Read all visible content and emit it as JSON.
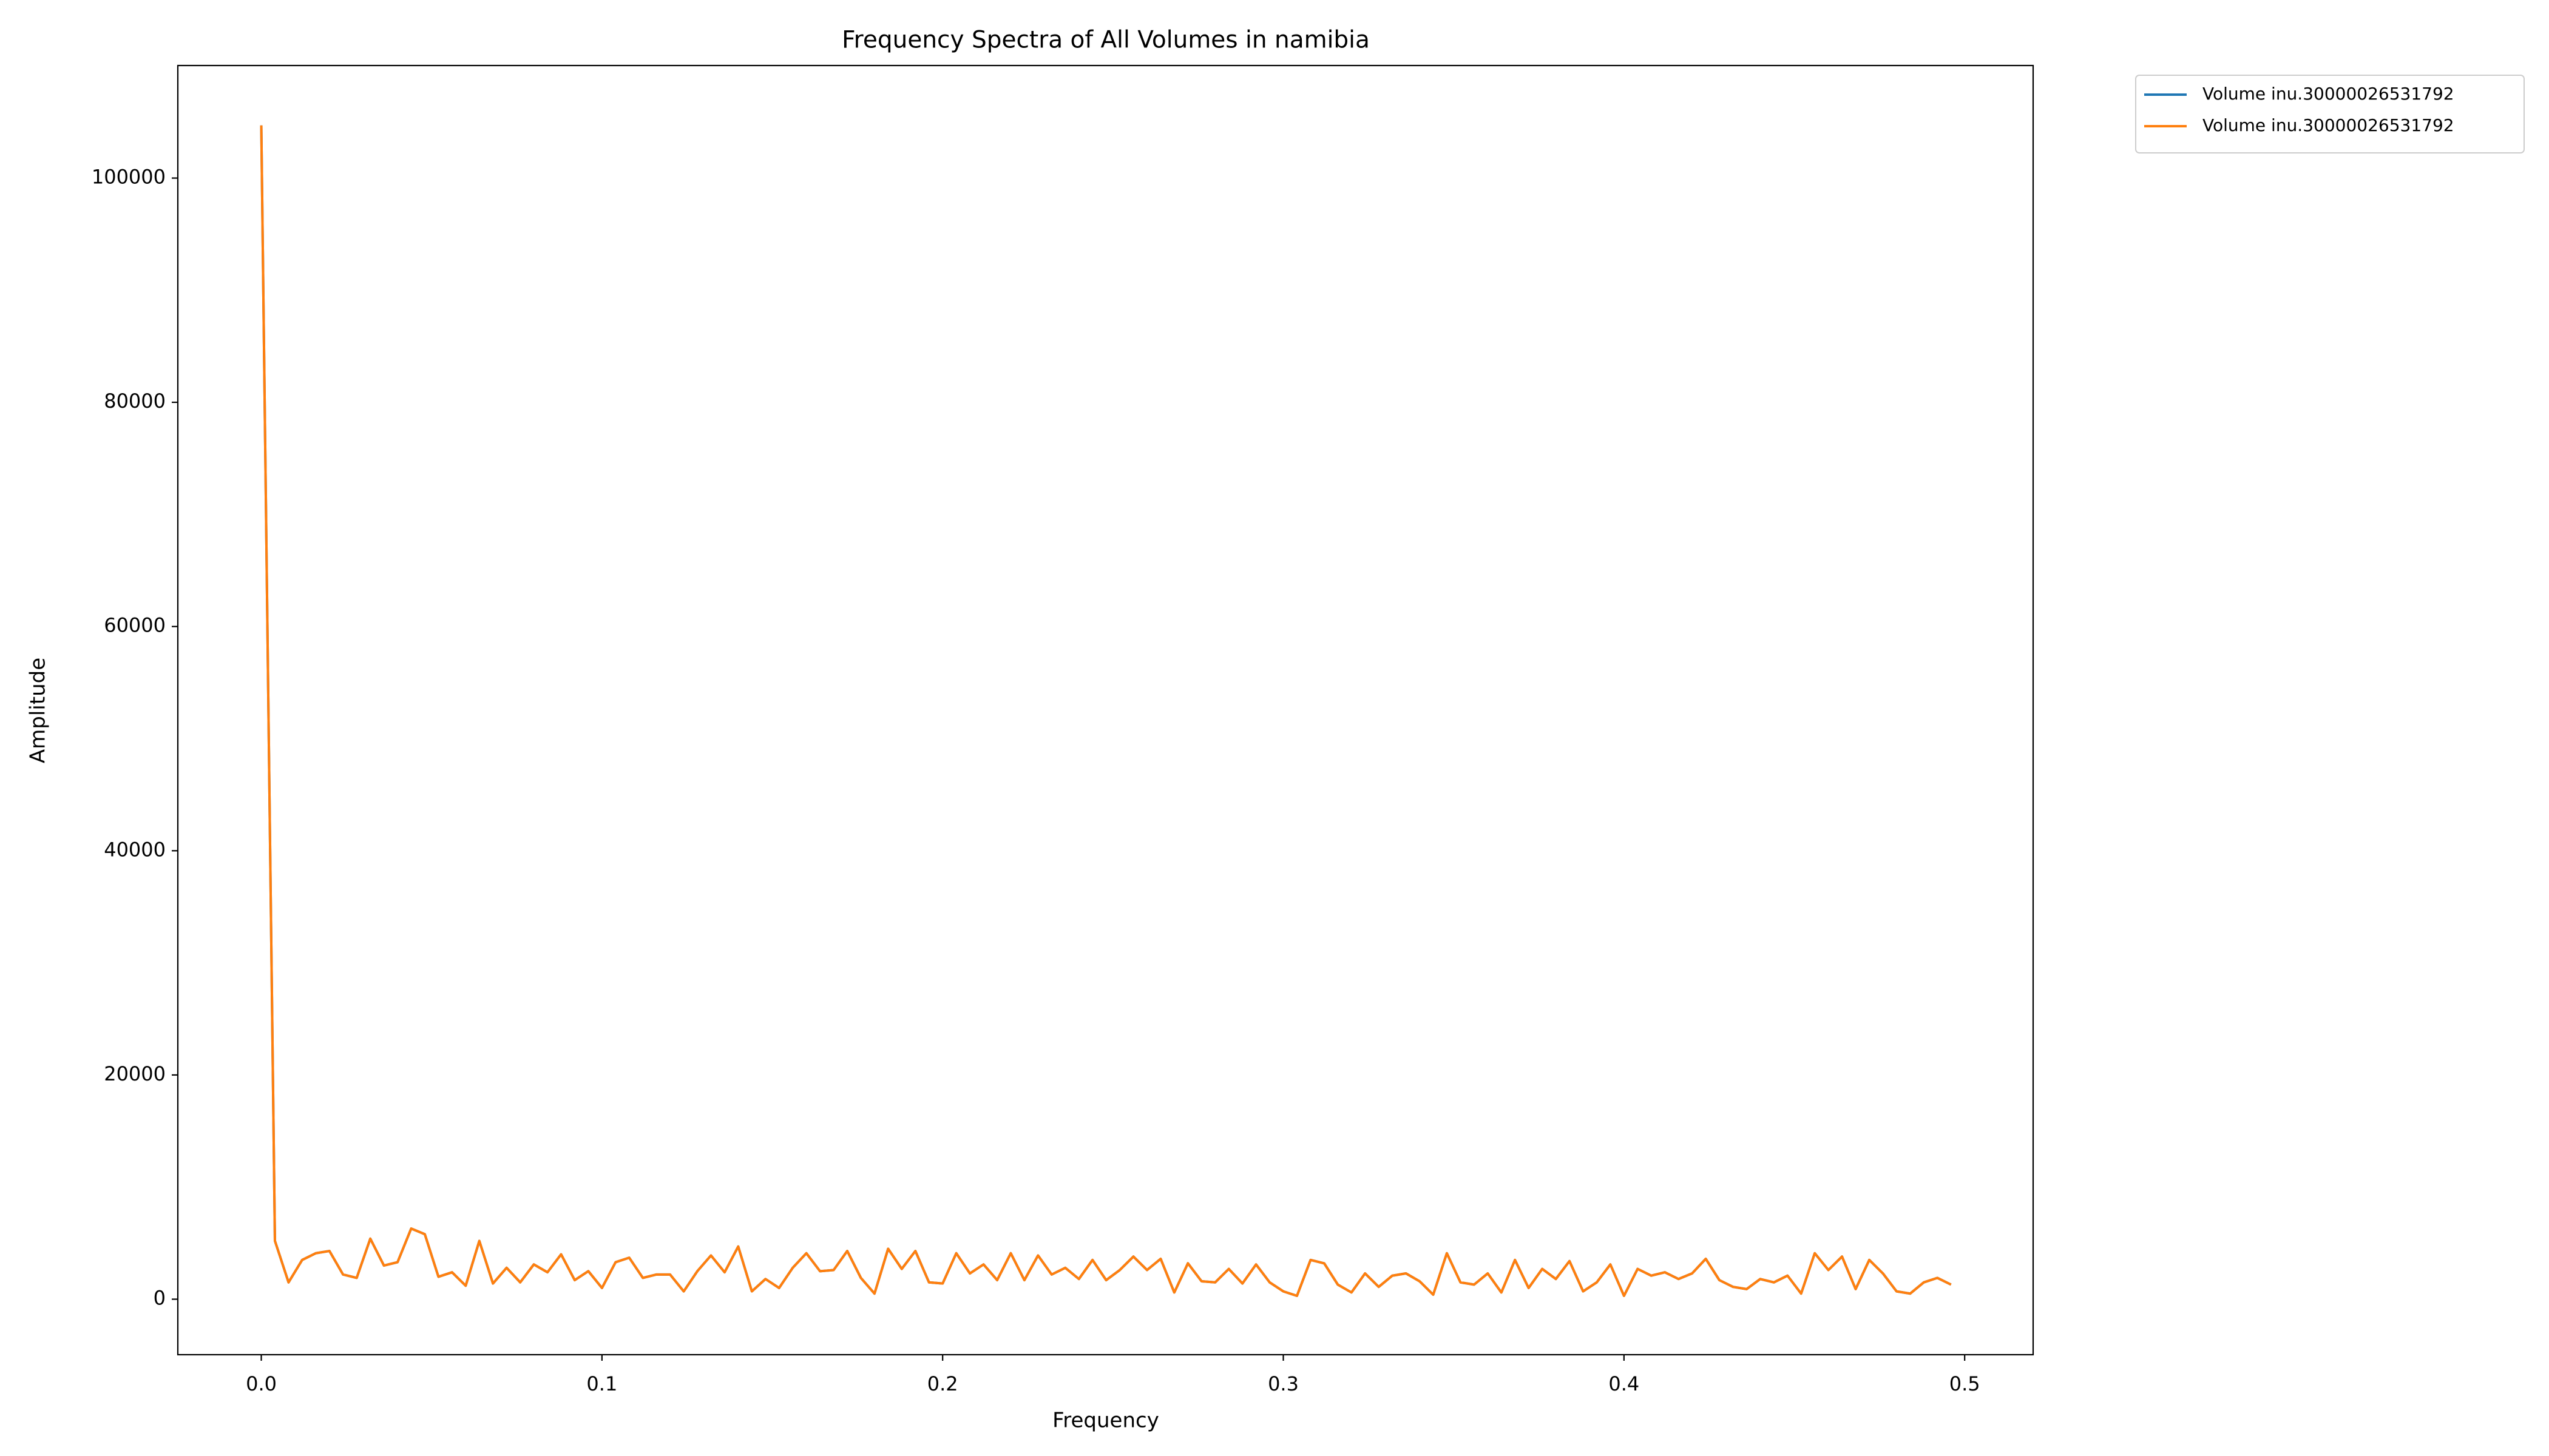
{
  "chart_data": {
    "type": "line",
    "title": "Frequency Spectra of All Volumes in namibia",
    "x_label": "Frequency",
    "y_label": "Amplitude",
    "xlim": [
      -0.0245,
      0.5201
    ],
    "ylim": [
      -4950,
      110040
    ],
    "xticks": [
      {
        "value": 0,
        "label": "0.0"
      },
      0.1,
      0.2,
      0.3,
      0.4,
      0.5
    ],
    "yticks": [
      0,
      20000,
      40000,
      60000,
      80000,
      100000
    ],
    "grid": false,
    "legend": "outside upper right",
    "x": [
      0,
      0.004,
      0.008,
      0.012,
      0.016,
      0.02,
      0.024,
      0.028,
      0.032,
      0.036,
      0.04,
      0.044,
      0.048,
      0.052,
      0.056,
      0.06,
      0.064,
      0.068,
      0.072,
      0.076,
      0.08,
      0.084,
      0.088,
      0.092,
      0.096,
      0.1,
      0.104,
      0.108,
      0.112,
      0.116,
      0.12,
      0.124,
      0.128,
      0.132,
      0.136,
      0.14,
      0.144,
      0.148,
      0.152,
      0.156,
      0.16,
      0.164,
      0.168,
      0.172,
      0.176,
      0.18,
      0.184,
      0.188,
      0.192,
      0.196,
      0.2,
      0.204,
      0.208,
      0.212,
      0.216,
      0.22,
      0.224,
      0.228,
      0.232,
      0.236,
      0.24,
      0.244,
      0.248,
      0.252,
      0.256,
      0.26,
      0.264,
      0.268,
      0.272,
      0.276,
      0.28,
      0.284,
      0.288,
      0.292,
      0.296,
      0.3,
      0.304,
      0.308,
      0.312,
      0.316,
      0.32,
      0.324,
      0.328,
      0.332,
      0.336,
      0.34,
      0.344,
      0.348,
      0.352,
      0.356,
      0.36,
      0.364,
      0.368,
      0.372,
      0.376,
      0.38,
      0.384,
      0.388,
      0.392,
      0.396,
      0.4,
      0.404,
      0.408,
      0.412,
      0.416,
      0.42,
      0.424,
      0.428,
      0.432,
      0.436,
      0.44,
      0.444,
      0.448,
      0.452,
      0.456,
      0.46,
      0.464,
      0.468,
      0.472,
      0.476,
      0.48,
      0.484,
      0.488,
      0.492,
      0.496
    ],
    "series": [
      {
        "name": "Volume inu.30000026531792",
        "color": "#1f77b4",
        "values": [
          104700,
          5200,
          1500,
          3500,
          4100,
          4300,
          2200,
          1900,
          5400,
          3000,
          3300,
          6300,
          5800,
          2000,
          2400,
          1200,
          5200,
          1400,
          2800,
          1500,
          3100,
          2400,
          4000,
          1700,
          2500,
          1000,
          3300,
          3700,
          1900,
          2200,
          2200,
          700,
          2500,
          3900,
          2400,
          4700,
          700,
          1800,
          1000,
          2800,
          4100,
          2500,
          2600,
          4300,
          1900,
          500,
          4500,
          2700,
          4300,
          1500,
          1400,
          4100,
          2300,
          3100,
          1700,
          4100,
          1700,
          3900,
          2200,
          2800,
          1800,
          3500,
          1700,
          2600,
          3800,
          2600,
          3600,
          600,
          3200,
          1600,
          1500,
          2700,
          1400,
          3100,
          1500,
          700,
          300,
          3500,
          3200,
          1300,
          600,
          2300,
          1100,
          2100,
          2300,
          1600,
          400,
          4100,
          1500,
          1300,
          2300,
          600,
          3500,
          1000,
          2700,
          1800,
          3400,
          700,
          1500,
          3100,
          300,
          2700,
          2100,
          2400,
          1800,
          2300,
          3600,
          1700,
          1100,
          900,
          1800,
          1500,
          2100,
          500,
          4100,
          2600,
          3800,
          900,
          3500,
          2300,
          700,
          500,
          1500,
          1900,
          1300
        ]
      },
      {
        "name": "Volume inu.30000026531792",
        "color": "#ff7f0e",
        "values": [
          104700,
          5200,
          1500,
          3500,
          4100,
          4300,
          2200,
          1900,
          5400,
          3000,
          3300,
          6300,
          5800,
          2000,
          2400,
          1200,
          5200,
          1400,
          2800,
          1500,
          3100,
          2400,
          4000,
          1700,
          2500,
          1000,
          3300,
          3700,
          1900,
          2200,
          2200,
          700,
          2500,
          3900,
          2400,
          4700,
          700,
          1800,
          1000,
          2800,
          4100,
          2500,
          2600,
          4300,
          1900,
          500,
          4500,
          2700,
          4300,
          1500,
          1400,
          4100,
          2300,
          3100,
          1700,
          4100,
          1700,
          3900,
          2200,
          2800,
          1800,
          3500,
          1700,
          2600,
          3800,
          2600,
          3600,
          600,
          3200,
          1600,
          1500,
          2700,
          1400,
          3100,
          1500,
          700,
          300,
          3500,
          3200,
          1300,
          600,
          2300,
          1100,
          2100,
          2300,
          1600,
          400,
          4100,
          1500,
          1300,
          2300,
          600,
          3500,
          1000,
          2700,
          1800,
          3400,
          700,
          1500,
          3100,
          300,
          2700,
          2100,
          2400,
          1800,
          2300,
          3600,
          1700,
          1100,
          900,
          1800,
          1500,
          2100,
          500,
          4100,
          2600,
          3800,
          900,
          3500,
          2300,
          700,
          500,
          1500,
          1900,
          1300
        ]
      }
    ]
  }
}
